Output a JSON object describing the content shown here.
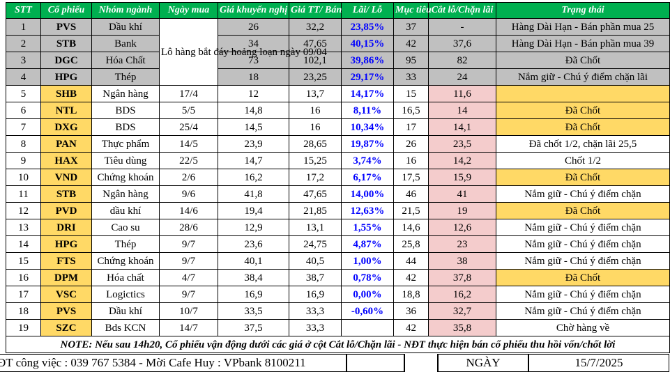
{
  "headers": [
    "STT",
    "Cổ phiếu",
    "Nhóm ngành",
    "Ngày mua",
    "Giá khuyến nghị",
    "Giá TT/ Bán",
    "Lãi/ Lỗ",
    "Mục tiêu",
    "Cắt lỗ/Chặn lãi",
    "Trạng thái"
  ],
  "merged_buy_date": "Lô hàng bắt đáy hoảng loạn ngày 09/04",
  "rows": [
    {
      "stt": "1",
      "symbol": "PVS",
      "sector": "Dầu khí",
      "buy_date": "",
      "rec_price": "26",
      "cur_price": "32,2",
      "pnl": "23,85%",
      "target": "37",
      "stop": "-",
      "status": "Hàng Dài Hạn - Bán phần mua 25",
      "style": "gray"
    },
    {
      "stt": "2",
      "symbol": "STB",
      "sector": "Bank",
      "buy_date": "",
      "rec_price": "34",
      "cur_price": "47,65",
      "pnl": "40,15%",
      "target": "42",
      "stop": "37,6",
      "status": "Hàng Dài Hạn - Bán phần mua 39",
      "style": "gray"
    },
    {
      "stt": "3",
      "symbol": "DGC",
      "sector": "Hóa Chất",
      "buy_date": "",
      "rec_price": "73",
      "cur_price": "102,1",
      "pnl": "39,86%",
      "target": "95",
      "stop": "82",
      "status": "Đã Chốt",
      "style": "gray"
    },
    {
      "stt": "4",
      "symbol": "HPG",
      "sector": "Thép",
      "buy_date": "",
      "rec_price": "18",
      "cur_price": "23,25",
      "pnl": "29,17%",
      "target": "33",
      "stop": "24",
      "status": "Nắm giữ - Chú ý điểm chặn lãi",
      "style": "gray"
    },
    {
      "stt": "5",
      "symbol": "SHB",
      "sector": "Ngân hàng",
      "buy_date": "17/4",
      "rec_price": "12",
      "cur_price": "13,7",
      "pnl": "14,17%",
      "target": "15",
      "stop": "11,6",
      "status": "",
      "style": "gold"
    },
    {
      "stt": "6",
      "symbol": "NTL",
      "sector": "BDS",
      "buy_date": "5/5",
      "rec_price": "14,8",
      "cur_price": "16",
      "pnl": "8,11%",
      "target": "16,5",
      "stop": "14",
      "status": "Đã Chốt",
      "style": "gold"
    },
    {
      "stt": "7",
      "symbol": "DXG",
      "sector": "BDS",
      "buy_date": "25/4",
      "rec_price": "14,5",
      "cur_price": "16",
      "pnl": "10,34%",
      "target": "17",
      "stop": "14,1",
      "status": "Đã Chốt",
      "style": "gold"
    },
    {
      "stt": "8",
      "symbol": "PAN",
      "sector": "Thực phẩm",
      "buy_date": "14/5",
      "rec_price": "23,9",
      "cur_price": "28,65",
      "pnl": "19,87%",
      "target": "26",
      "stop": "23,5",
      "status": "Đã chốt 1/2, chặn lãi 25,5",
      "style": "white"
    },
    {
      "stt": "9",
      "symbol": "HAX",
      "sector": "Tiêu dùng",
      "buy_date": "22/5",
      "rec_price": "14,7",
      "cur_price": "15,25",
      "pnl": "3,74%",
      "target": "16",
      "stop": "14,2",
      "status": "Chốt 1/2",
      "style": "white"
    },
    {
      "stt": "10",
      "symbol": "VND",
      "sector": "Chứng khoán",
      "buy_date": "2/6",
      "rec_price": "16,2",
      "cur_price": "17,2",
      "pnl": "6,17%",
      "target": "17,5",
      "stop": "15,9",
      "status": "Đã Chốt",
      "style": "gold"
    },
    {
      "stt": "11",
      "symbol": "STB",
      "sector": "Ngân hàng",
      "buy_date": "9/6",
      "rec_price": "41,8",
      "cur_price": "47,65",
      "pnl": "14,00%",
      "target": "46",
      "stop": "41",
      "status": "Nắm giữ - Chú ý điểm chặn",
      "style": "white"
    },
    {
      "stt": "12",
      "symbol": "PVD",
      "sector": "dầu khí",
      "buy_date": "14/6",
      "rec_price": "19,4",
      "cur_price": "21,85",
      "pnl": "12,63%",
      "target": "21,5",
      "stop": "19",
      "status": "Đã Chốt",
      "style": "gold"
    },
    {
      "stt": "13",
      "symbol": "DRI",
      "sector": "Cao su",
      "buy_date": "28/6",
      "rec_price": "12,9",
      "cur_price": "13,1",
      "pnl": "1,55%",
      "target": "14,6",
      "stop": "12,6",
      "status": "Nắm giữ - Chú ý điểm chặn",
      "style": "white"
    },
    {
      "stt": "14",
      "symbol": "HPG",
      "sector": "Thép",
      "buy_date": "9/7",
      "rec_price": "23,6",
      "cur_price": "24,75",
      "pnl": "4,87%",
      "target": "25,8",
      "stop": "23",
      "status": "Nắm giữ - Chú ý điểm chặn",
      "style": "white"
    },
    {
      "stt": "15",
      "symbol": "FTS",
      "sector": "Chứng khoán",
      "buy_date": "9/7",
      "rec_price": "40,1",
      "cur_price": "40,5",
      "pnl": "1,00%",
      "target": "44",
      "stop": "38",
      "status": "Nắm giữ - Chú ý điểm chặn",
      "style": "white"
    },
    {
      "stt": "16",
      "symbol": "DPM",
      "sector": "Hóa chất",
      "buy_date": "4/7",
      "rec_price": "38,4",
      "cur_price": "38,7",
      "pnl": "0,78%",
      "target": "42",
      "stop": "37,8",
      "status": "Đã Chốt",
      "style": "gold"
    },
    {
      "stt": "17",
      "symbol": "VSC",
      "sector": "Logictics",
      "buy_date": "9/7",
      "rec_price": "16,9",
      "cur_price": "16,9",
      "pnl": "0,00%",
      "target": "18,8",
      "stop": "16,2",
      "status": "Nắm giữ - Chú ý điểm chặn",
      "style": "white"
    },
    {
      "stt": "18",
      "symbol": "PVS",
      "sector": "Dầu khí",
      "buy_date": "10/7",
      "rec_price": "33,5",
      "cur_price": "33,3",
      "pnl": "-0,60%",
      "target": "36",
      "stop": "32,7",
      "status": "Nắm giữ - Chú ý điểm chặn",
      "style": "white"
    },
    {
      "stt": "19",
      "symbol": "SZC",
      "sector": "Bds KCN",
      "buy_date": "14/7",
      "rec_price": "37,5",
      "cur_price": "33,3",
      "pnl": "",
      "target": "42",
      "stop": "35,8",
      "status": "Chờ hàng về",
      "style": "white"
    }
  ],
  "note": "NOTE:  Nếu sau 14h20, Cổ phiếu vận động dưới các giá ở cột Cắt lỗ/Chặn lãi - NĐT thực hiện bán cổ phiếu thu hồi vốn/chốt lời",
  "footer": {
    "contact": "ĐT công việc : 039 767 5384 - Mời Cafe Huy : VPbank 8100211",
    "day_label": "NGÀY",
    "date": "15/7/2025"
  },
  "colors": {
    "header_bg": "#00b050",
    "symbol_gray": "#c0c0c0",
    "symbol_gold": "#ffd966",
    "profit_text": "#0000ff",
    "stop_pink": "#f4cccc"
  }
}
